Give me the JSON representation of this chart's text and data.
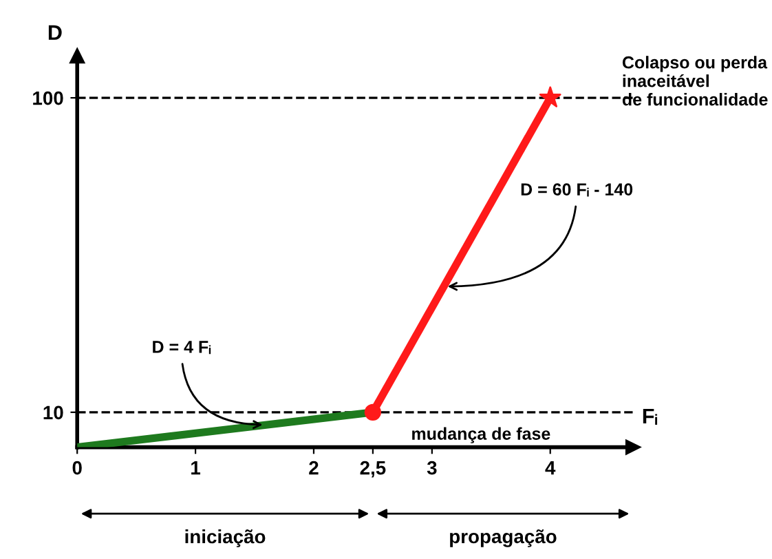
{
  "chart_data": {
    "type": "line",
    "xlabel": "Fᵢ",
    "ylabel": "D",
    "xlim": [
      0,
      4.7
    ],
    "ylim": [
      0,
      112
    ],
    "xticks": [
      0,
      1,
      2,
      {
        "value": 2.5,
        "label": "2,5"
      },
      3,
      4
    ],
    "yticks": [
      10,
      100
    ],
    "series": [
      {
        "color": "#1e7a1e",
        "x": [
          0,
          2.5
        ],
        "values": [
          0,
          10
        ],
        "marker": "none",
        "line_style": "solid"
      },
      {
        "color": "#ff1a1a",
        "x": [
          2.5,
          4
        ],
        "values": [
          10,
          100
        ],
        "marker": "none",
        "line_style": "solid"
      },
      {
        "type": "scatter",
        "color": "#ff1a1a",
        "x": [
          2.5
        ],
        "values": [
          10
        ],
        "marker": "circle"
      },
      {
        "type": "scatter",
        "color": "#ff1a1a",
        "x": [
          4
        ],
        "values": [
          100
        ],
        "marker": "star"
      }
    ],
    "ref_lines": [
      {
        "axis": "y",
        "value": 10,
        "line_style": "dashed",
        "color": "#000000"
      },
      {
        "axis": "y",
        "value": 100,
        "line_style": "dashed",
        "color": "#000000"
      }
    ],
    "annotations": [
      {
        "text": "D = 4 Fᵢ",
        "x": 1.6,
        "y": 6.4
      },
      {
        "text": "D = 60 Fᵢ - 140",
        "x": 3.1,
        "y": 46
      },
      {
        "text": "mudança de fase",
        "x": 2.5,
        "y": 10
      },
      "Colapso ou perda\ninaceitável\nde funcionalidade",
      "iniciação",
      "propagação"
    ]
  }
}
